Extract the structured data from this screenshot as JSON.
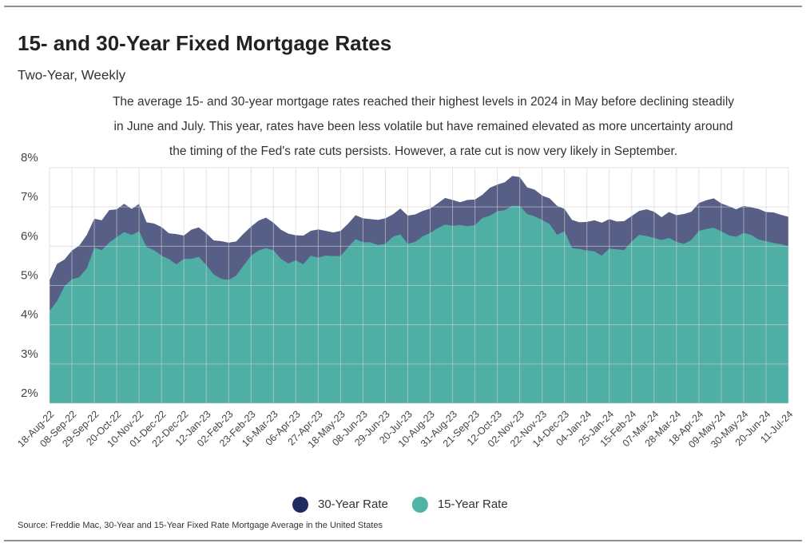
{
  "chart_data": {
    "type": "area",
    "title": "15- and 30-Year Fixed Mortgage Rates",
    "subtitle": "Two-Year, Weekly",
    "note": [
      "The average 15- and 30-year mortgage rates reached their highest levels in 2024 in May before declining steadily",
      "in June and July. This year, rates have been less volatile but have remained elevated as more uncertainty around",
      "the timing of the Fed's rate cuts persists. However, a rate cut is now very likely in September."
    ],
    "source": "Source:  Freddie Mac, 30-Year  and 15-Year Fixed Rate Mortgage Average in the United States",
    "categories": [
      "18-Aug-22",
      null,
      null,
      "08-Sep-22",
      null,
      null,
      "29-Sep-22",
      null,
      null,
      "20-Oct-22",
      null,
      null,
      "10-Nov-22",
      null,
      null,
      "01-Dec-22",
      null,
      null,
      "22-Dec-22",
      null,
      null,
      "12-Jan-23",
      null,
      null,
      "02-Feb-23",
      null,
      null,
      "23-Feb-23",
      null,
      null,
      "16-Mar-23",
      null,
      null,
      "06-Apr-23",
      null,
      null,
      "27-Apr-23",
      null,
      null,
      "18-May-23",
      null,
      null,
      "08-Jun-23",
      null,
      null,
      "29-Jun-23",
      null,
      null,
      "20-Jul-23",
      null,
      null,
      "10-Aug-23",
      null,
      null,
      "31-Aug-23",
      null,
      null,
      "21-Sep-23",
      null,
      null,
      "12-Oct-23",
      null,
      null,
      "02-Nov-23",
      null,
      null,
      "22-Nov-23",
      null,
      null,
      "14-Dec-23",
      null,
      null,
      "04-Jan-24",
      null,
      null,
      "25-Jan-24",
      null,
      null,
      "15-Feb-24",
      null,
      null,
      "07-Mar-24",
      null,
      null,
      "28-Mar-24",
      null,
      null,
      "18-Apr-24",
      null,
      null,
      "09-May-24",
      null,
      null,
      "30-May-24",
      null,
      null,
      "20-Jun-24",
      null,
      null,
      "11-Jul-24"
    ],
    "series": [
      {
        "name": "30-Year Rate",
        "color": "#1f2a5e",
        "values": [
          5.13,
          5.55,
          5.66,
          5.89,
          6.02,
          6.29,
          6.7,
          6.66,
          6.92,
          6.94,
          7.08,
          6.95,
          7.08,
          6.61,
          6.58,
          6.49,
          6.33,
          6.31,
          6.27,
          6.42,
          6.48,
          6.33,
          6.15,
          6.13,
          6.09,
          6.12,
          6.32,
          6.5,
          6.65,
          6.73,
          6.6,
          6.42,
          6.32,
          6.28,
          6.27,
          6.39,
          6.43,
          6.39,
          6.35,
          6.39,
          6.57,
          6.79,
          6.71,
          6.69,
          6.67,
          6.71,
          6.81,
          6.96,
          6.78,
          6.81,
          6.9,
          6.96,
          7.09,
          7.23,
          7.18,
          7.12,
          7.18,
          7.19,
          7.31,
          7.49,
          7.57,
          7.63,
          7.79,
          7.76,
          7.5,
          7.44,
          7.29,
          7.22,
          7.03,
          6.95,
          6.67,
          6.61,
          6.62,
          6.66,
          6.6,
          6.69,
          6.63,
          6.64,
          6.77,
          6.9,
          6.94,
          6.88,
          6.74,
          6.87,
          6.79,
          6.82,
          6.88,
          7.1,
          7.17,
          7.22,
          7.09,
          7.02,
          6.94,
          7.03,
          6.99,
          6.95,
          6.87,
          6.86,
          6.8,
          6.75
        ]
      },
      {
        "name": "15-Year Rate",
        "color": "#4fb3a6",
        "values": [
          4.35,
          4.6,
          4.98,
          5.16,
          5.21,
          5.44,
          5.96,
          5.9,
          6.09,
          6.23,
          6.36,
          6.29,
          6.38,
          5.98,
          5.9,
          5.76,
          5.67,
          5.54,
          5.68,
          5.68,
          5.73,
          5.52,
          5.28,
          5.17,
          5.14,
          5.25,
          5.51,
          5.76,
          5.89,
          5.95,
          5.9,
          5.68,
          5.56,
          5.64,
          5.54,
          5.76,
          5.71,
          5.76,
          5.75,
          5.75,
          5.97,
          6.18,
          6.1,
          6.1,
          6.03,
          6.06,
          6.24,
          6.3,
          6.06,
          6.11,
          6.25,
          6.34,
          6.46,
          6.55,
          6.52,
          6.54,
          6.51,
          6.54,
          6.72,
          6.78,
          6.89,
          6.92,
          7.03,
          7.03,
          6.82,
          6.76,
          6.67,
          6.56,
          6.29,
          6.38,
          5.95,
          5.93,
          5.89,
          5.87,
          5.76,
          5.94,
          5.92,
          5.9,
          6.12,
          6.29,
          6.26,
          6.21,
          6.16,
          6.21,
          6.11,
          6.06,
          6.16,
          6.39,
          6.44,
          6.47,
          6.38,
          6.28,
          6.24,
          6.34,
          6.29,
          6.17,
          6.13,
          6.08,
          6.05,
          6.0
        ]
      }
    ],
    "ylim": [
      2,
      8
    ],
    "yticks": [
      {
        "value": 2,
        "label": "2%"
      },
      {
        "value": 3,
        "label": "3%"
      },
      {
        "value": 4,
        "label": "4%"
      },
      {
        "value": 5,
        "label": "5%"
      },
      {
        "value": 6,
        "label": "6%"
      },
      {
        "value": 7,
        "label": "7%"
      },
      {
        "value": 8,
        "label": "8%"
      }
    ],
    "grid": true,
    "legend": "bottom"
  }
}
